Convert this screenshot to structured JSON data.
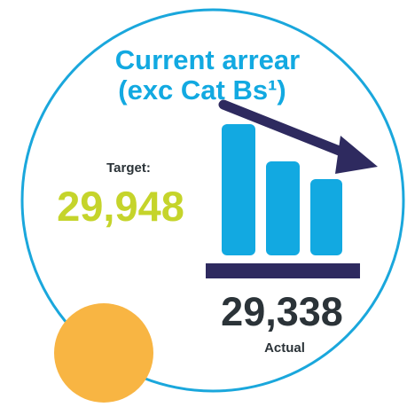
{
  "title_line1": "Current arrear",
  "title_line2": "(exc Cat Bs¹)",
  "target": {
    "label": "Target:",
    "value": "29,948"
  },
  "actual": {
    "label": "Actual",
    "value": "29,338"
  }
}
